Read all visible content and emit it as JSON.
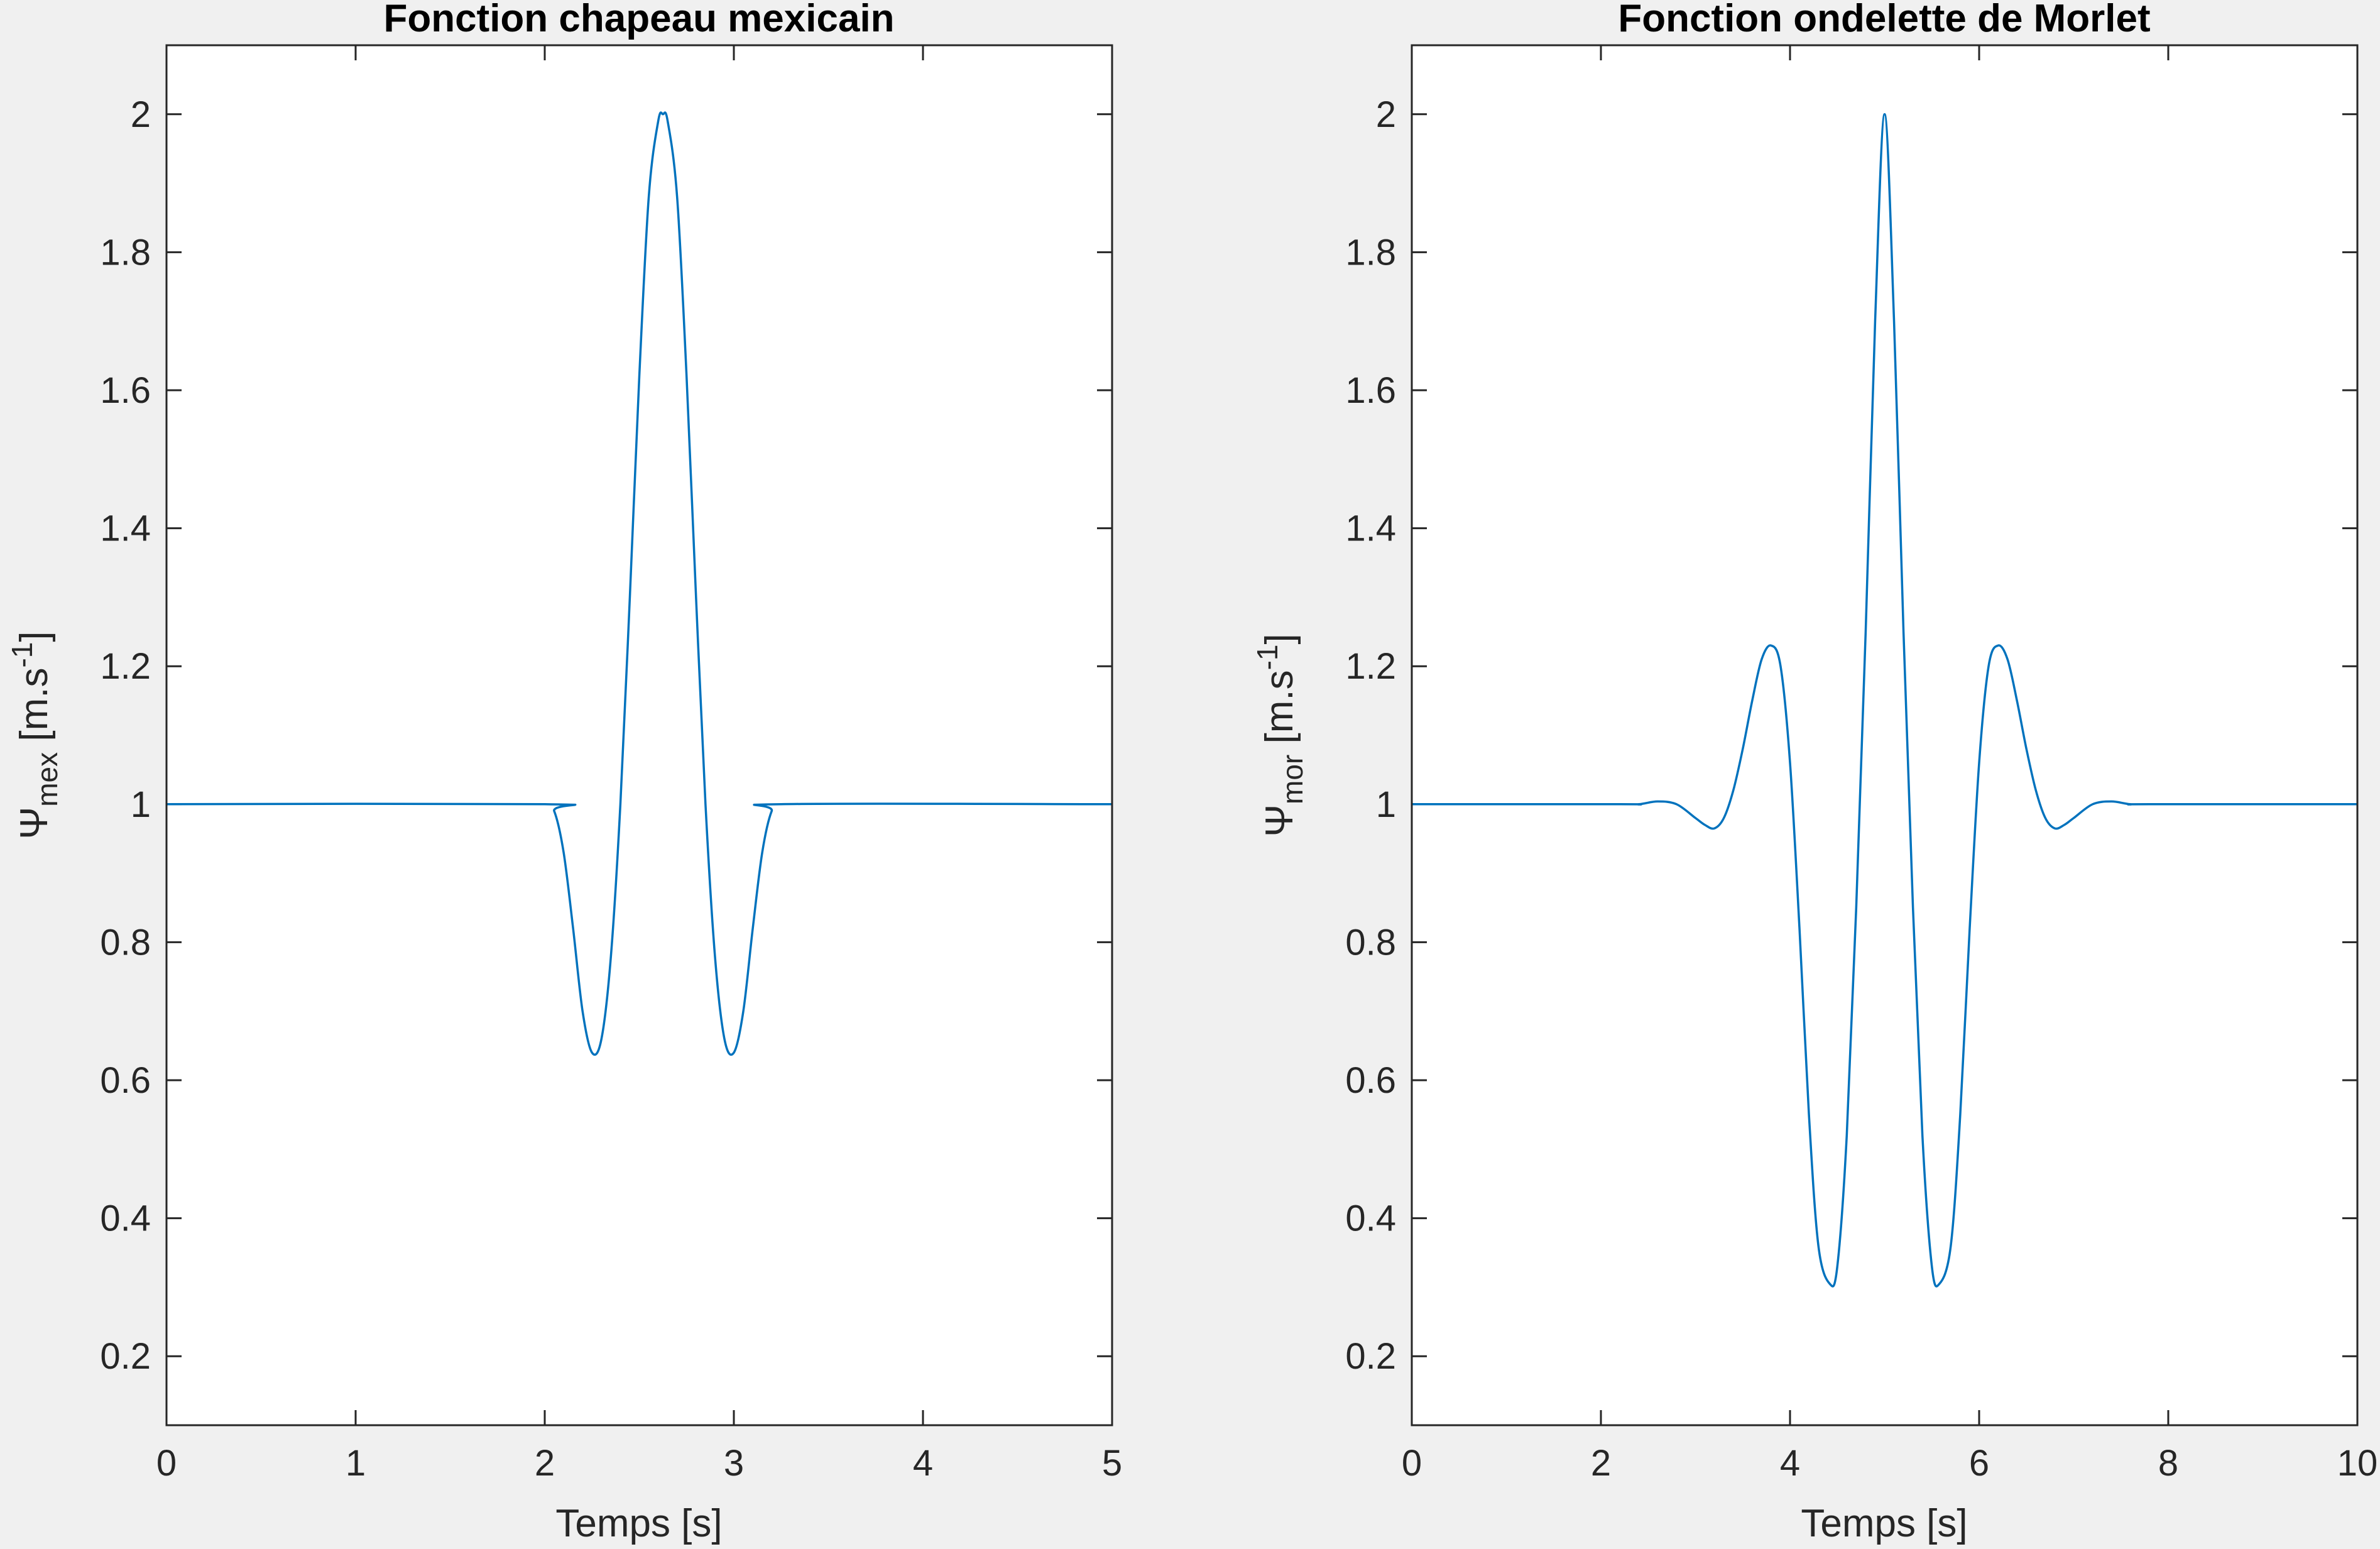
{
  "colors": {
    "background": "#f0f0f0",
    "axes_face": "#ffffff",
    "axes_edge": "#262626",
    "line": "#0072bd"
  },
  "chart_data": [
    {
      "type": "line",
      "title": "Fonction chapeau mexicain",
      "xlabel": "Temps [s]",
      "ylabel": {
        "prefix": "Ψ",
        "sub": "mex",
        "unit_pre": " [m.s",
        "sup": "-1",
        "unit_post": "]"
      },
      "xlim": [
        0,
        5
      ],
      "ylim": [
        0.1,
        2.1
      ],
      "xticks": [
        0,
        1,
        2,
        3,
        4,
        5
      ],
      "xticklabels": [
        "0",
        "1",
        "2",
        "3",
        "4",
        "5"
      ],
      "yticks": [
        0.2,
        0.4,
        0.6,
        0.8,
        1,
        1.2,
        1.4,
        1.6,
        1.8,
        2
      ],
      "yticklabels": [
        "0.2",
        "0.4",
        "0.6",
        "0.8",
        "1",
        "1.2",
        "1.4",
        "1.6",
        "1.8",
        "2"
      ],
      "grid": false,
      "series": [
        {
          "x": [
            0,
            2.0,
            2.05,
            2.1,
            2.15,
            2.2,
            2.25,
            2.3,
            2.35,
            2.4,
            2.45,
            2.5,
            2.55,
            2.6,
            2.625,
            2.65,
            2.7,
            2.75,
            2.8,
            2.85,
            2.9,
            2.95,
            3.0,
            3.05,
            3.1,
            3.15,
            3.2,
            3.25,
            5
          ],
          "y": [
            1,
            1,
            0.99,
            0.93,
            0.82,
            0.7,
            0.64,
            0.66,
            0.78,
            1.0,
            1.3,
            1.62,
            1.88,
            1.99,
            2.0,
            1.99,
            1.88,
            1.62,
            1.3,
            1.0,
            0.78,
            0.66,
            0.64,
            0.7,
            0.82,
            0.93,
            0.99,
            1.0,
            1
          ]
        }
      ]
    },
    {
      "type": "line",
      "title": "Fonction ondelette de Morlet",
      "xlabel": "Temps [s]",
      "ylabel": {
        "prefix": "Ψ",
        "sub": "mor",
        "unit_pre": " [m.s",
        "sup": "-1",
        "unit_post": "]"
      },
      "xlim": [
        0,
        10
      ],
      "ylim": [
        0.1,
        2.1
      ],
      "xticks": [
        0,
        2,
        4,
        6,
        8,
        10
      ],
      "xticklabels": [
        "0",
        "2",
        "4",
        "6",
        "8",
        "10"
      ],
      "yticks": [
        0.2,
        0.4,
        0.6,
        0.8,
        1,
        1.2,
        1.4,
        1.6,
        1.8,
        2
      ],
      "yticklabels": [
        "0.2",
        "0.4",
        "0.6",
        "0.8",
        "1",
        "1.2",
        "1.4",
        "1.6",
        "1.8",
        "2"
      ],
      "grid": false,
      "series": [
        {
          "x": [
            0,
            2.2,
            2.4,
            2.6,
            2.8,
            3.0,
            3.1,
            3.2,
            3.3,
            3.4,
            3.5,
            3.6,
            3.7,
            3.8,
            3.9,
            4.0,
            4.1,
            4.2,
            4.3,
            4.42,
            4.5,
            4.6,
            4.7,
            4.8,
            4.9,
            5.0,
            5.1,
            5.2,
            5.3,
            5.4,
            5.5,
            5.58,
            5.7,
            5.8,
            5.9,
            6.0,
            6.1,
            6.2,
            6.3,
            6.4,
            6.5,
            6.6,
            6.7,
            6.8,
            6.9,
            7.0,
            7.2,
            7.4,
            7.6,
            7.8,
            10
          ],
          "y": [
            1,
            1,
            1.0,
            1.004,
            1.0,
            0.98,
            0.97,
            0.965,
            0.98,
            1.02,
            1.08,
            1.15,
            1.21,
            1.23,
            1.2,
            1.06,
            0.82,
            0.55,
            0.36,
            0.305,
            0.33,
            0.52,
            0.85,
            1.25,
            1.7,
            2.0,
            1.7,
            1.25,
            0.85,
            0.52,
            0.33,
            0.305,
            0.36,
            0.55,
            0.82,
            1.06,
            1.2,
            1.23,
            1.21,
            1.15,
            1.08,
            1.02,
            0.98,
            0.965,
            0.97,
            0.98,
            1.0,
            1.004,
            1.0,
            1.0,
            1
          ]
        }
      ]
    }
  ]
}
